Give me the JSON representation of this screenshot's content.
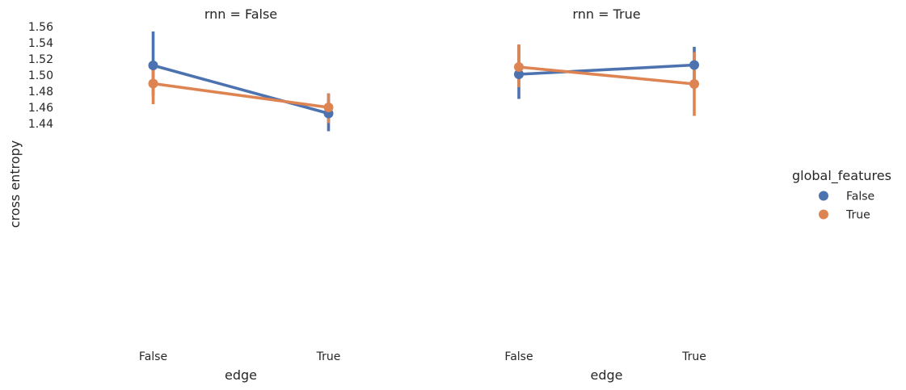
{
  "chart_data": {
    "type": "line",
    "ylabel": "cross entropy",
    "ylim": [
      1.422,
      1.56
    ],
    "yticks": [
      "1.44",
      "1.46",
      "1.48",
      "1.50",
      "1.52",
      "1.54",
      "1.56"
    ],
    "legend": {
      "title": "global_features",
      "placement": "right",
      "entries": [
        {
          "label": "False",
          "color": "#4c72b0"
        },
        {
          "label": "True",
          "color": "#dd8452"
        }
      ]
    },
    "panels": [
      {
        "title": "rnn = False",
        "xlabel": "edge",
        "categories": [
          "False",
          "True"
        ],
        "series": [
          {
            "name": "False",
            "color": "#4c72b0",
            "values": [
              1.512,
              1.4525
            ],
            "ci": [
              [
                1.475,
                1.554
              ],
              [
                1.4305,
                1.477
              ]
            ]
          },
          {
            "name": "True",
            "color": "#dd8452",
            "values": [
              1.4895,
              1.46
            ],
            "ci": [
              [
                1.464,
                1.5175
              ],
              [
                1.4405,
                1.4775
              ]
            ]
          }
        ]
      },
      {
        "title": "rnn = True",
        "xlabel": "edge",
        "categories": [
          "False",
          "True"
        ],
        "series": [
          {
            "name": "False",
            "color": "#4c72b0",
            "values": [
              1.501,
              1.5125
            ],
            "ci": [
              [
                1.4705,
                1.537
              ],
              [
                1.4825,
                1.535
              ]
            ]
          },
          {
            "name": "True",
            "color": "#dd8452",
            "values": [
              1.51,
              1.489
            ],
            "ci": [
              [
                1.485,
                1.538
              ],
              [
                1.4495,
                1.5285
              ]
            ]
          }
        ]
      }
    ]
  }
}
